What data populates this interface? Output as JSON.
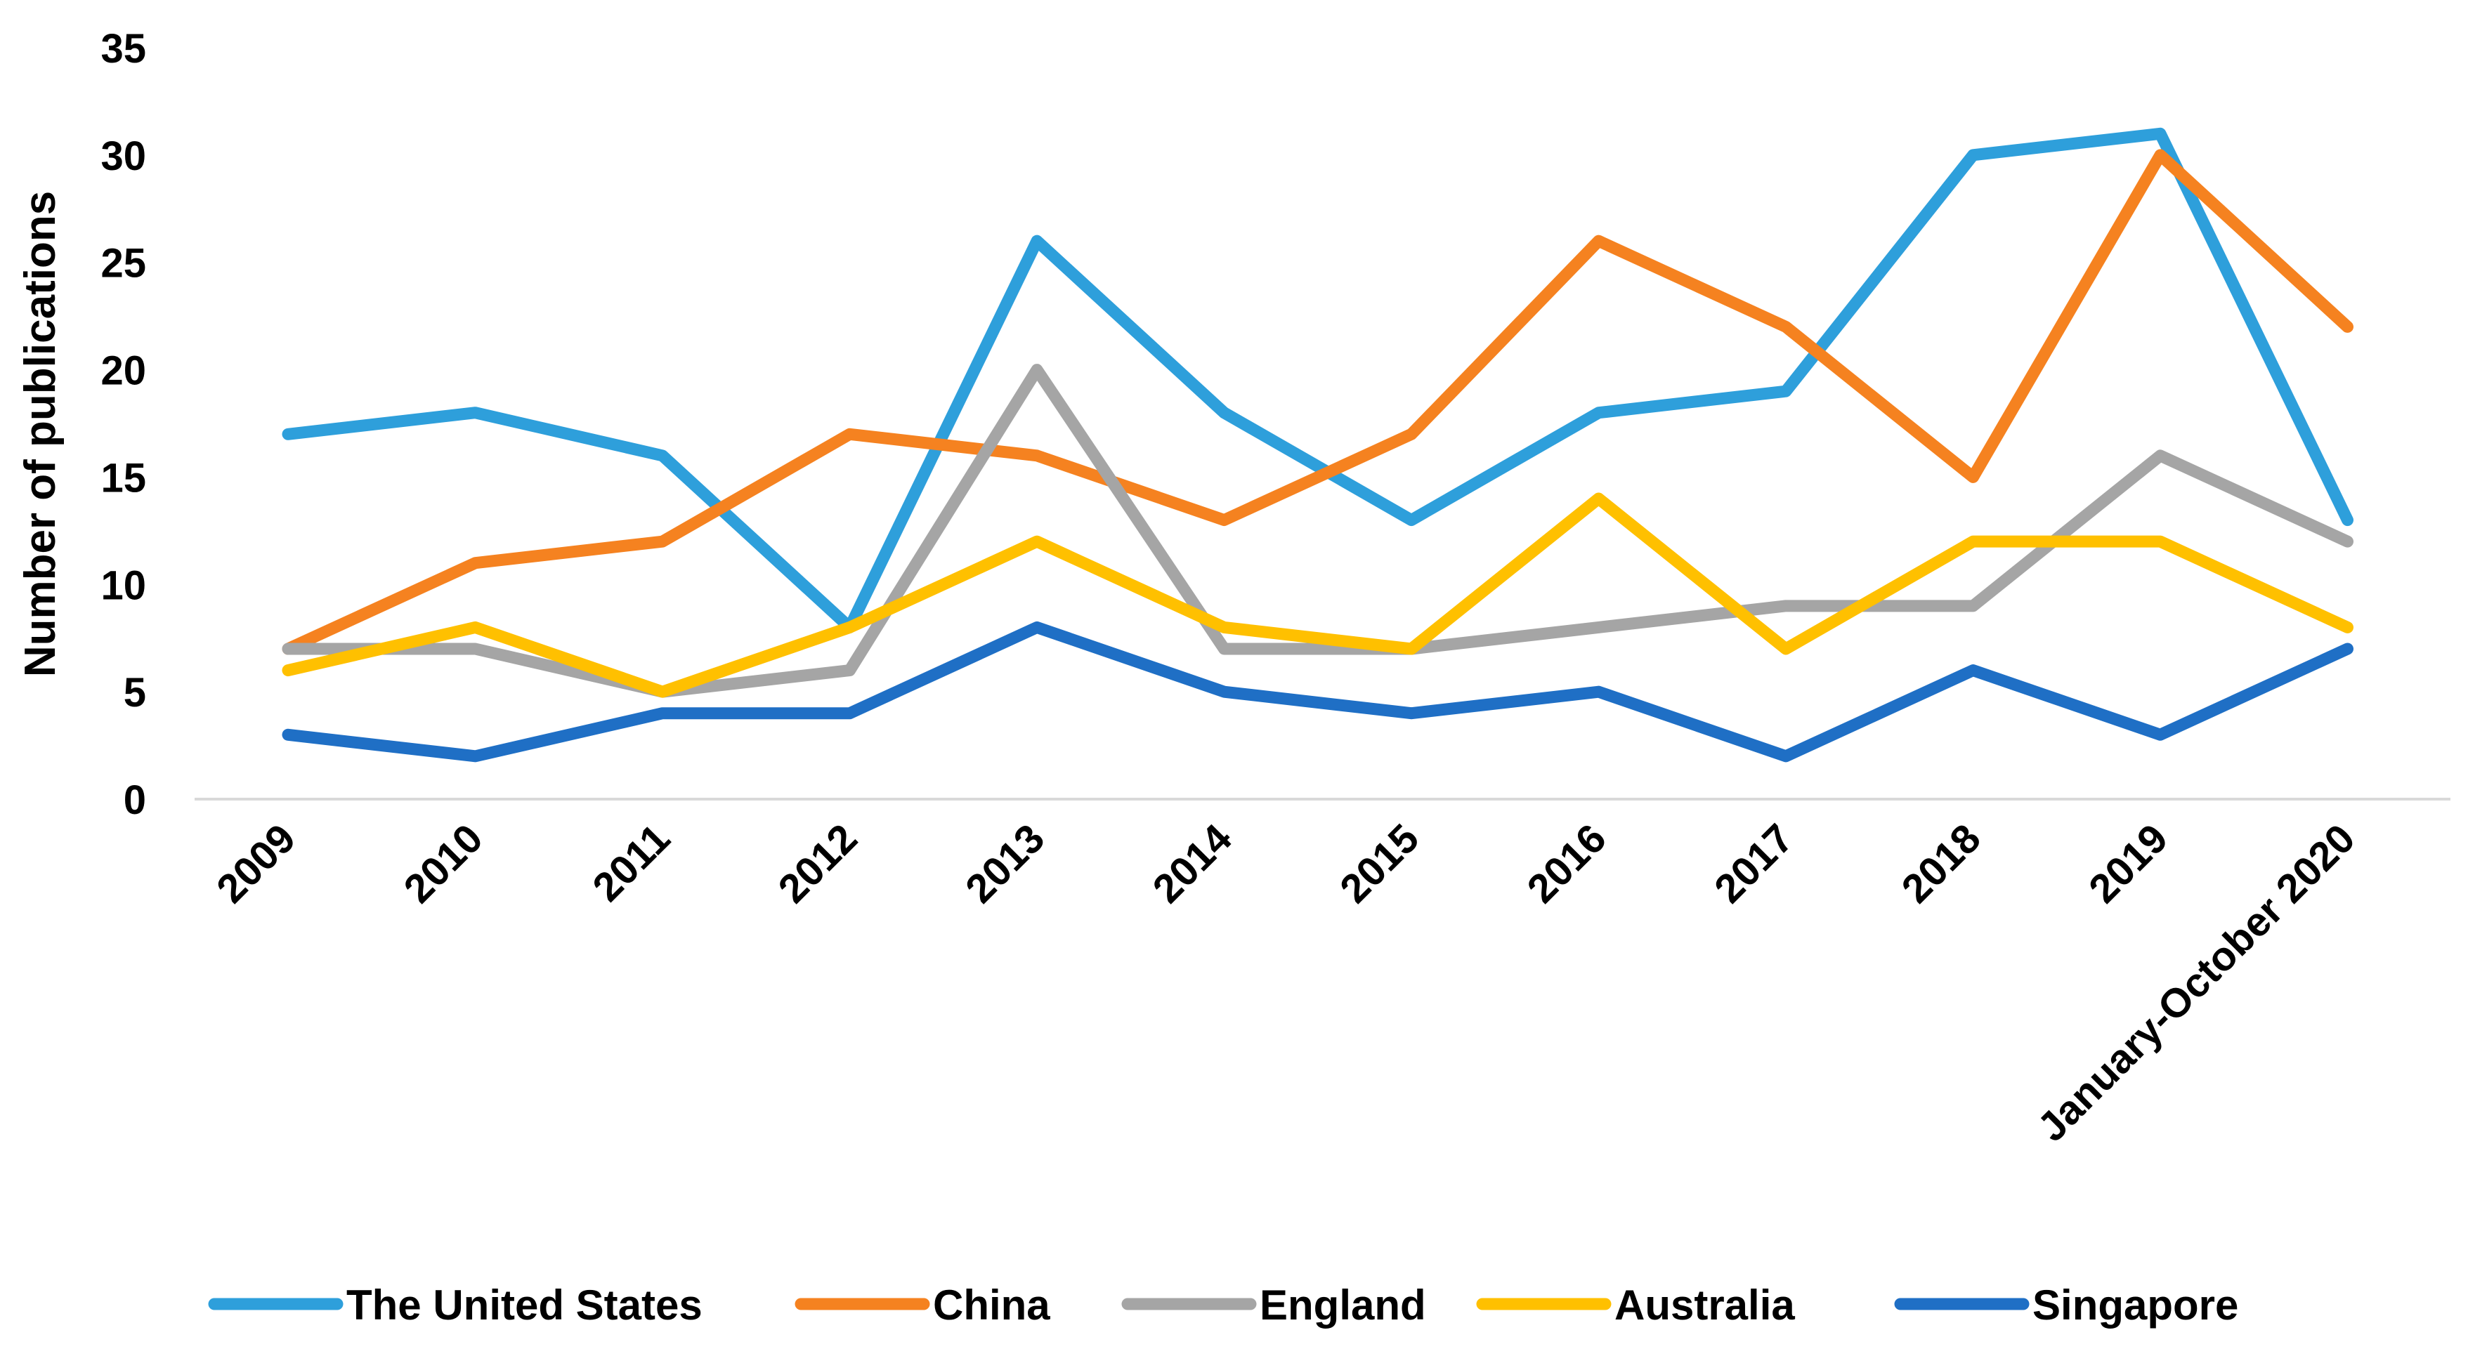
{
  "chart_data": {
    "type": "line",
    "title": "",
    "xlabel": "",
    "ylabel": "Number of publications",
    "ylim": [
      0,
      35
    ],
    "yticks": [
      0,
      5,
      10,
      15,
      20,
      25,
      30,
      35
    ],
    "grid": false,
    "legend_position": "bottom",
    "categories": [
      "2009",
      "2010",
      "2011",
      "2012",
      "2013",
      "2014",
      "2015",
      "2016",
      "2017",
      "2018",
      "2019",
      "January-October 2020"
    ],
    "series": [
      {
        "name": "The United States",
        "color": "#2E9FDB",
        "values": [
          17,
          18,
          16,
          8,
          26,
          18,
          13,
          18,
          19,
          30,
          31,
          13
        ]
      },
      {
        "name": "China",
        "color": "#F58220",
        "values": [
          7,
          11,
          12,
          17,
          16,
          13,
          17,
          26,
          22,
          15,
          30,
          22
        ]
      },
      {
        "name": "England",
        "color": "#A5A5A5",
        "values": [
          7,
          7,
          5,
          6,
          20,
          7,
          7,
          8,
          9,
          9,
          16,
          12
        ]
      },
      {
        "name": "Australia",
        "color": "#FFC000",
        "values": [
          6,
          8,
          5,
          8,
          12,
          8,
          7,
          14,
          7,
          12,
          12,
          8
        ]
      },
      {
        "name": "Singapore",
        "color": "#1F6FC5",
        "values": [
          3,
          2,
          4,
          4,
          8,
          5,
          4,
          5,
          2,
          6,
          3,
          7
        ]
      }
    ]
  }
}
